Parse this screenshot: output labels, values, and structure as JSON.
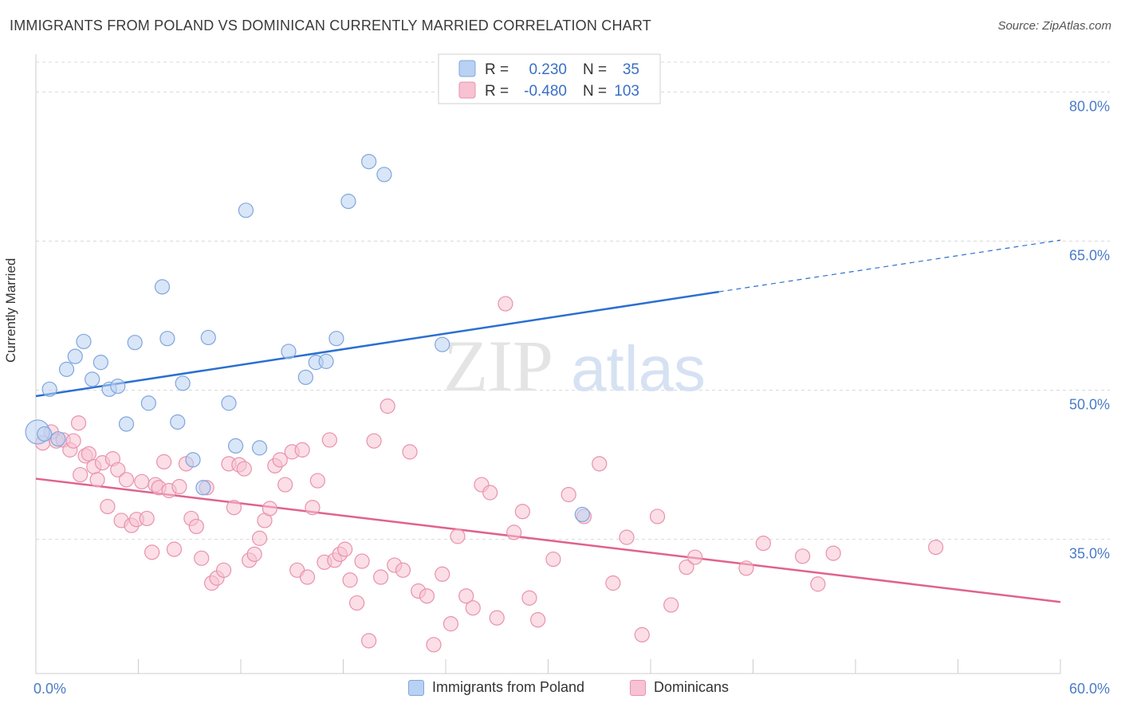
{
  "header": {
    "title": "IMMIGRANTS FROM POLAND VS DOMINICAN CURRENTLY MARRIED CORRELATION CHART",
    "source": "Source: ZipAtlas.com"
  },
  "watermark": {
    "zip": "ZIP",
    "atlas": "atlas"
  },
  "colors": {
    "poland_fill": "#b9d1f2",
    "poland_stroke": "#7fa6dd",
    "poland_line": "#2b6fd1",
    "dominican_fill": "#f7c2d2",
    "dominican_stroke": "#e892ae",
    "dominican_line": "#e0628e",
    "grid": "#d9d9d9",
    "tick_text": "#4a7cc7"
  },
  "legend": {
    "rows": [
      {
        "r_label": "R =",
        "r_value": "0.230",
        "n_label": "N =",
        "n_value": "35"
      },
      {
        "r_label": "R =",
        "r_value": "-0.480",
        "n_label": "N =",
        "n_value": "103"
      }
    ]
  },
  "chart_data": {
    "type": "scatter",
    "title": "IMMIGRANTS FROM POLAND VS DOMINICAN CURRENTLY MARRIED CORRELATION CHART",
    "ylabel": "Currently Married",
    "xlim": [
      0,
      60
    ],
    "ylim": [
      21.5,
      83
    ],
    "x_tick_labels": [
      "0.0%",
      "60.0%"
    ],
    "y_ticks": [
      35,
      50,
      65,
      80
    ],
    "y_tick_labels": [
      "35.0%",
      "50.0%",
      "65.0%",
      "80.0%"
    ],
    "grid": "horizontal dashed",
    "legend_position": "top-center",
    "series": [
      {
        "name": "Immigrants from Poland",
        "r": 0.23,
        "n": 35,
        "trend": {
          "x0": 0,
          "y0": 49.4,
          "x1": 40,
          "y1": 59.9,
          "dash_to_x": 60,
          "dash_to_y": 65.1
        },
        "points": [
          [
            0.1,
            45.8
          ],
          [
            0.8,
            50.1
          ],
          [
            1.3,
            45.1
          ],
          [
            1.8,
            52.1
          ],
          [
            2.3,
            53.4
          ],
          [
            2.8,
            54.9
          ],
          [
            3.3,
            51.1
          ],
          [
            3.8,
            52.8
          ],
          [
            4.3,
            50.1
          ],
          [
            4.8,
            50.4
          ],
          [
            5.3,
            46.6
          ],
          [
            5.8,
            54.8
          ],
          [
            6.6,
            48.7
          ],
          [
            7.4,
            60.4
          ],
          [
            7.7,
            55.2
          ],
          [
            8.3,
            46.8
          ],
          [
            8.6,
            50.7
          ],
          [
            9.2,
            43.0
          ],
          [
            9.8,
            40.2
          ],
          [
            10.1,
            55.3
          ],
          [
            11.3,
            48.7
          ],
          [
            11.7,
            44.4
          ],
          [
            12.3,
            68.1
          ],
          [
            13.1,
            44.2
          ],
          [
            14.8,
            53.9
          ],
          [
            15.8,
            51.3
          ],
          [
            16.4,
            52.8
          ],
          [
            17.0,
            52.9
          ],
          [
            17.6,
            55.2
          ],
          [
            18.3,
            69.0
          ],
          [
            19.5,
            73.0
          ],
          [
            20.4,
            71.7
          ],
          [
            23.8,
            54.6
          ],
          [
            32.0,
            37.5
          ],
          [
            0.5,
            45.6
          ]
        ]
      },
      {
        "name": "Dominicans",
        "r": -0.48,
        "n": 103,
        "trend": {
          "x0": 0,
          "y0": 41.1,
          "x1": 60,
          "y1": 28.7
        },
        "points": [
          [
            0.4,
            44.7
          ],
          [
            0.9,
            45.8
          ],
          [
            1.2,
            44.9
          ],
          [
            1.6,
            45.0
          ],
          [
            2.0,
            44.0
          ],
          [
            2.2,
            44.9
          ],
          [
            2.5,
            46.7
          ],
          [
            2.6,
            41.5
          ],
          [
            2.9,
            43.4
          ],
          [
            3.1,
            43.6
          ],
          [
            3.4,
            42.3
          ],
          [
            3.6,
            41.0
          ],
          [
            3.9,
            42.7
          ],
          [
            4.2,
            38.3
          ],
          [
            4.5,
            43.1
          ],
          [
            4.8,
            42.0
          ],
          [
            5.0,
            36.9
          ],
          [
            5.3,
            41.0
          ],
          [
            5.6,
            36.4
          ],
          [
            5.9,
            37.0
          ],
          [
            6.2,
            40.8
          ],
          [
            6.5,
            37.1
          ],
          [
            6.8,
            33.7
          ],
          [
            7.0,
            40.5
          ],
          [
            7.2,
            40.2
          ],
          [
            7.5,
            42.8
          ],
          [
            7.8,
            39.9
          ],
          [
            8.1,
            34.0
          ],
          [
            8.4,
            40.3
          ],
          [
            8.8,
            42.6
          ],
          [
            9.1,
            37.1
          ],
          [
            9.4,
            36.3
          ],
          [
            9.7,
            33.1
          ],
          [
            10.0,
            40.2
          ],
          [
            10.3,
            30.6
          ],
          [
            10.6,
            31.1
          ],
          [
            11.0,
            31.9
          ],
          [
            11.3,
            42.6
          ],
          [
            11.6,
            38.2
          ],
          [
            11.9,
            42.5
          ],
          [
            12.2,
            42.1
          ],
          [
            12.5,
            32.9
          ],
          [
            12.8,
            33.5
          ],
          [
            13.1,
            35.1
          ],
          [
            13.4,
            36.9
          ],
          [
            13.7,
            38.1
          ],
          [
            14.0,
            42.4
          ],
          [
            14.3,
            43.0
          ],
          [
            14.6,
            40.5
          ],
          [
            15.0,
            43.8
          ],
          [
            15.3,
            31.9
          ],
          [
            15.6,
            44.0
          ],
          [
            15.9,
            31.2
          ],
          [
            16.2,
            38.2
          ],
          [
            16.5,
            40.9
          ],
          [
            16.9,
            32.7
          ],
          [
            17.2,
            45.0
          ],
          [
            17.5,
            32.9
          ],
          [
            17.8,
            33.5
          ],
          [
            18.1,
            34.0
          ],
          [
            18.4,
            30.9
          ],
          [
            18.8,
            28.6
          ],
          [
            19.1,
            32.8
          ],
          [
            19.5,
            24.8
          ],
          [
            19.8,
            44.9
          ],
          [
            20.2,
            31.2
          ],
          [
            20.6,
            48.4
          ],
          [
            21.0,
            32.4
          ],
          [
            21.5,
            31.9
          ],
          [
            21.9,
            43.8
          ],
          [
            22.4,
            29.8
          ],
          [
            22.9,
            29.3
          ],
          [
            23.3,
            24.4
          ],
          [
            23.8,
            31.5
          ],
          [
            24.3,
            26.5
          ],
          [
            24.7,
            35.3
          ],
          [
            25.2,
            29.3
          ],
          [
            25.6,
            28.1
          ],
          [
            26.1,
            40.5
          ],
          [
            26.6,
            39.7
          ],
          [
            27.0,
            27.1
          ],
          [
            27.5,
            58.7
          ],
          [
            28.0,
            35.7
          ],
          [
            28.5,
            37.8
          ],
          [
            28.9,
            29.1
          ],
          [
            29.4,
            26.9
          ],
          [
            30.3,
            33.0
          ],
          [
            31.2,
            39.5
          ],
          [
            32.1,
            37.3
          ],
          [
            33.0,
            42.6
          ],
          [
            33.8,
            30.6
          ],
          [
            34.6,
            35.2
          ],
          [
            35.5,
            25.4
          ],
          [
            36.4,
            37.3
          ],
          [
            37.2,
            28.4
          ],
          [
            38.1,
            32.2
          ],
          [
            38.6,
            33.2
          ],
          [
            41.6,
            32.1
          ],
          [
            42.6,
            34.6
          ],
          [
            44.9,
            33.3
          ],
          [
            45.8,
            30.5
          ],
          [
            46.7,
            33.6
          ],
          [
            52.7,
            34.2
          ]
        ]
      }
    ]
  },
  "bottom_legend": {
    "items": [
      {
        "label": "Immigrants from Poland"
      },
      {
        "label": "Dominicans"
      }
    ]
  }
}
